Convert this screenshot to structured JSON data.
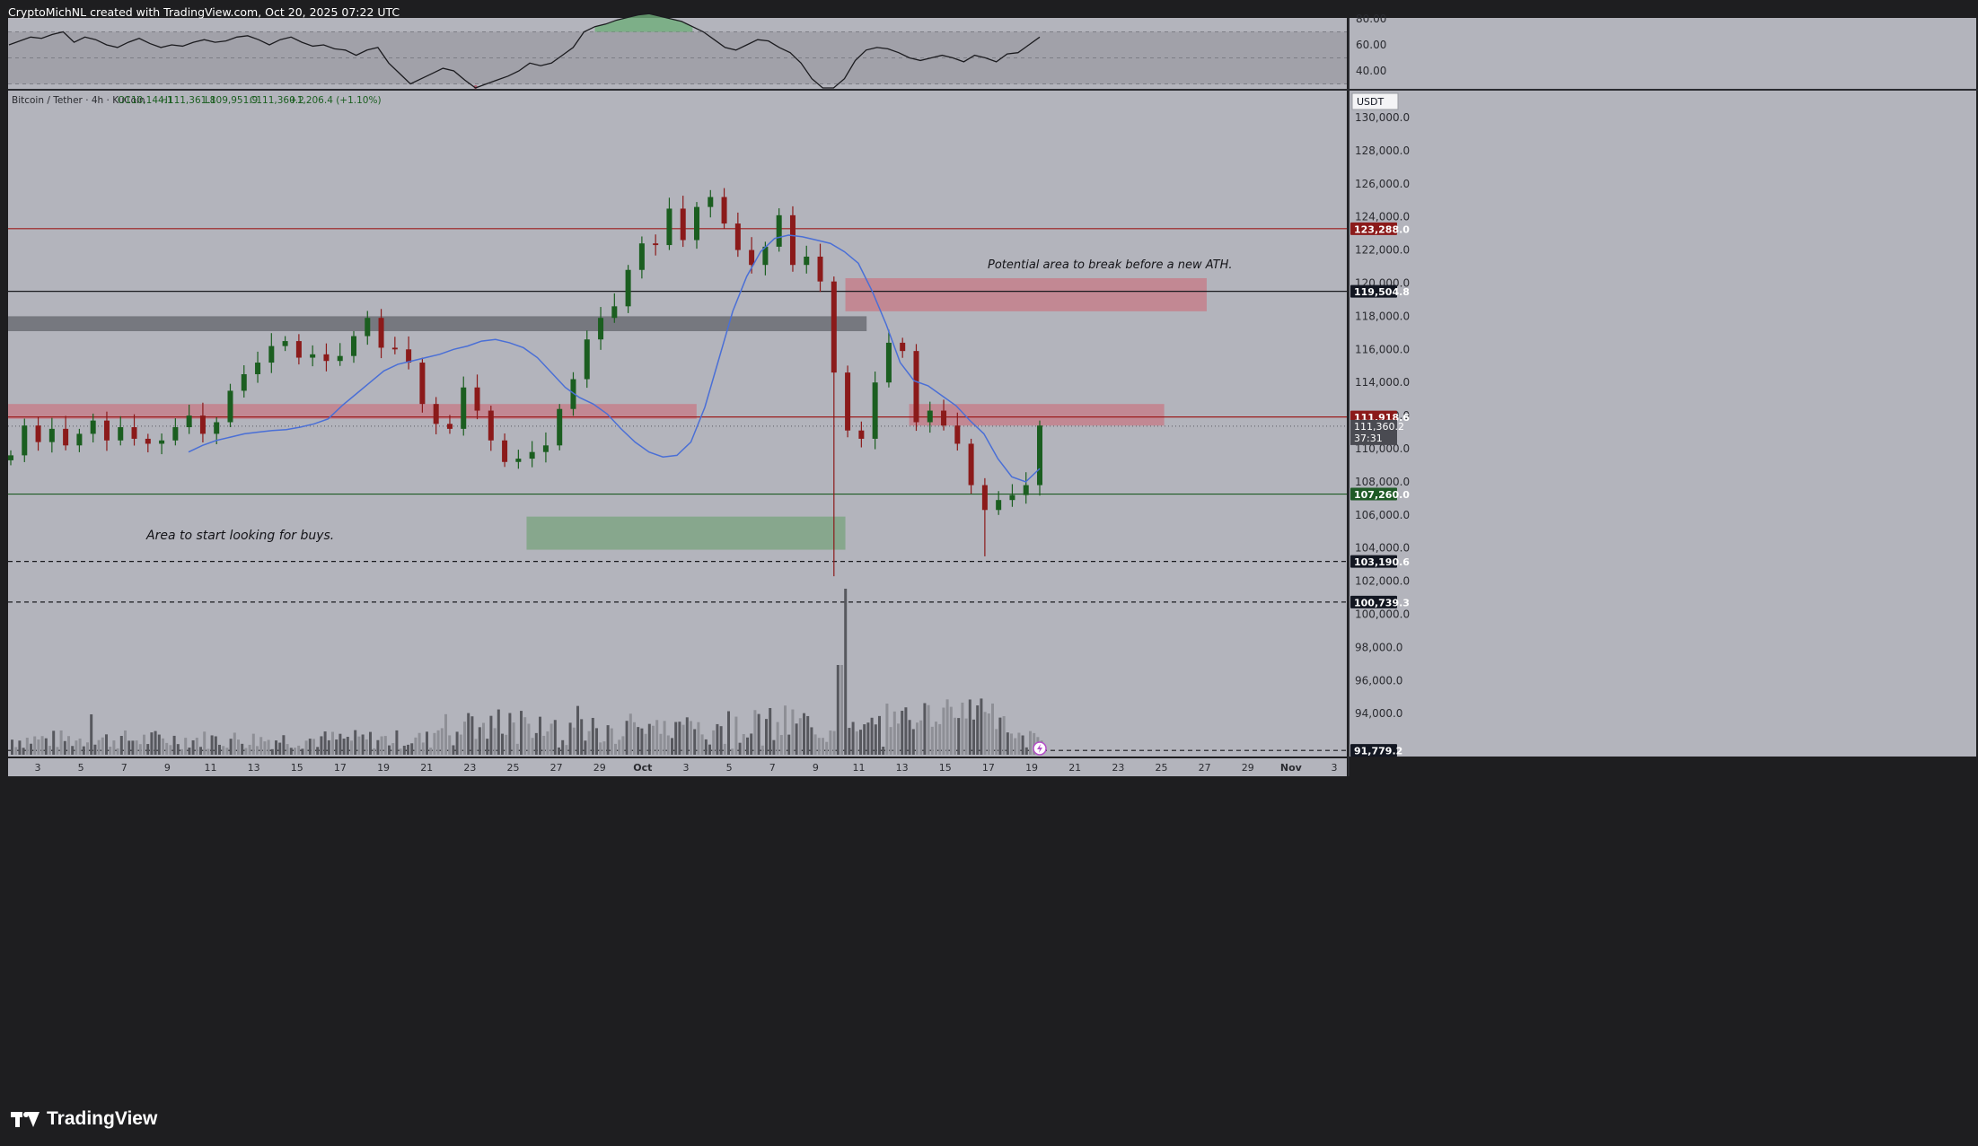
{
  "attribution": "CryptoMichNL created with TradingView.com, Oct 20, 2025 07:22 UTC",
  "brand": "TradingView",
  "colors": {
    "panel_bg": "#b3b4bc",
    "frame_bg": "#1e1e20",
    "up_candle": "#1b5e20",
    "down_candle": "#8b1a1a",
    "ma_line": "#4a6fd6",
    "resistance_zone": "#c77a86",
    "support_zone": "#7fa585",
    "grey_zone": "#6f7178",
    "red_line": "#9c1c1c",
    "green_line": "#1e5b23",
    "label_red": "#8b1a1a",
    "label_green": "#1f5a26",
    "label_dark": "#131722"
  },
  "chart_data": [
    {
      "type": "line",
      "name": "rsi_pane",
      "ylim": [
        27,
        82
      ],
      "tick_labels": [
        "80.00",
        "60.00",
        "40.00"
      ],
      "tick_values": [
        80,
        60,
        40
      ],
      "band": [
        30,
        70
      ],
      "values": [
        60,
        63,
        66,
        65,
        68,
        70,
        62,
        66,
        64,
        60,
        58,
        62,
        65,
        61,
        58,
        60,
        59,
        62,
        64,
        62,
        63,
        66,
        67,
        64,
        60,
        64,
        66,
        62,
        59,
        60,
        57,
        56,
        52,
        56,
        58,
        46,
        38,
        30,
        34,
        38,
        42,
        40,
        33,
        26,
        30,
        33,
        36,
        40,
        46,
        44,
        46,
        52,
        58,
        70,
        74,
        76,
        79,
        81,
        83,
        84,
        82,
        80,
        78,
        74,
        70,
        64,
        58,
        56,
        60,
        64,
        63,
        58,
        54,
        46,
        34,
        24,
        26,
        34,
        48,
        56,
        58,
        57,
        54,
        50,
        48,
        50,
        52,
        50,
        47,
        52,
        50,
        47,
        53,
        54,
        60,
        66
      ]
    },
    {
      "type": "candlestick",
      "name": "main_pane",
      "legend": {
        "pair": "Bitcoin / Tether · 4h · KuCoin",
        "open": "O110,144.1",
        "high": "H111,361.8",
        "low": "L109,951.9",
        "close": "C111,360.2",
        "change": "+1,206.4 (+1.10%)"
      },
      "currency": "USDT",
      "ylim": [
        90500,
        131600
      ],
      "y_ticks": [
        130000,
        128000,
        126000,
        124000,
        122000,
        120000,
        118000,
        116000,
        114000,
        112000,
        110000,
        108000,
        106000,
        104000,
        102000,
        100000,
        98000,
        96000,
        94000
      ],
      "y_tick_labels": [
        "130,000.0",
        "128,000.0",
        "126,000.0",
        "124,000.0",
        "122,000.0",
        "120,000.0",
        "118,000.0",
        "116,000.0",
        "114,000.0",
        "112,000.0",
        "110,000.0",
        "108,000.0",
        "106,000.0",
        "104,000.0",
        "102,000.0",
        "100,000.0",
        "98,000.0",
        "96,000.0",
        "94,000.0"
      ],
      "x_labels": [
        "3",
        "5",
        "7",
        "9",
        "11",
        "13",
        "15",
        "17",
        "19",
        "21",
        "23",
        "25",
        "27",
        "29",
        "Oct",
        "3",
        "5",
        "7",
        "9",
        "11",
        "13",
        "15",
        "17",
        "19",
        "21",
        "23",
        "25",
        "27",
        "29",
        "Nov",
        "3"
      ],
      "x_label_bold": [
        "Oct",
        "Nov"
      ],
      "closes": [
        109600,
        111400,
        110400,
        111200,
        110200,
        110900,
        111700,
        110500,
        111300,
        110600,
        110300,
        110500,
        111300,
        112000,
        110900,
        111600,
        113500,
        114500,
        115200,
        116200,
        116500,
        115500,
        115700,
        115300,
        115600,
        116800,
        117900,
        116100,
        116000,
        115200,
        112700,
        111500,
        111200,
        113700,
        112300,
        110500,
        109200,
        109400,
        109800,
        110200,
        112400,
        114200,
        116600,
        117900,
        118600,
        120800,
        122400,
        122300,
        124500,
        122600,
        124600,
        125200,
        123600,
        122000,
        121100,
        122200,
        124100,
        121100,
        121600,
        120100,
        114600,
        111100,
        110600,
        114000,
        116400,
        115900,
        111600,
        112300,
        111400,
        110300,
        107800,
        106300,
        106900,
        107200,
        107800,
        111400
      ],
      "ma": [
        109800,
        110200,
        110500,
        110700,
        110900,
        111000,
        111100,
        111150,
        111300,
        111500,
        111800,
        112600,
        113300,
        114000,
        114700,
        115100,
        115300,
        115500,
        115700,
        116000,
        116200,
        116500,
        116600,
        116400,
        116100,
        115500,
        114600,
        113700,
        113100,
        112700,
        112100,
        111200,
        110400,
        109800,
        109500,
        109600,
        110400,
        112500,
        115400,
        118300,
        120400,
        121900,
        122700,
        122900,
        122800,
        122600,
        122400,
        121900,
        121200,
        119500,
        117500,
        115200,
        114100,
        113800,
        113200,
        112600,
        111700,
        110900,
        109400,
        108300,
        108000,
        108800
      ],
      "zones": [
        {
          "name": "grey-supply-zone",
          "start": "2025-08-31",
          "end": "2025-10-12",
          "top": 118000,
          "bottom": 117100
        },
        {
          "name": "red-zone-left",
          "start": "2025-08-31",
          "end": "2025-10-04",
          "top": 112700,
          "bottom": 111800
        },
        {
          "name": "red-zone-right",
          "start": "2025-10-14",
          "end": "2025-10-26",
          "top": 112700,
          "bottom": 111400
        },
        {
          "name": "ath-zone",
          "start": "2025-10-11",
          "end": "2025-10-28",
          "top": 120300,
          "bottom": 118300
        },
        {
          "name": "buy-zone",
          "start": "2025-09-26",
          "end": "2025-10-11",
          "top": 105900,
          "bottom": 103900
        }
      ],
      "lines": [
        {
          "name": "resistance-line-123288",
          "price": 123288.0,
          "label": "123,288.0",
          "style": "solid",
          "label_bg": "#8b1a1a"
        },
        {
          "name": "line-119504",
          "price": 119504.8,
          "label": "119,504.8",
          "style": "solid",
          "label_bg": "#131722"
        },
        {
          "name": "line-111918",
          "price": 111918.6,
          "label": "111,918.6",
          "style": "solid",
          "label_bg": "#8b1a1a"
        },
        {
          "name": "support-line-107260",
          "price": 107260.0,
          "label": "107,260.0",
          "style": "solid",
          "label_bg": "#1f5a26"
        },
        {
          "name": "dashed-line-103190",
          "price": 103190.6,
          "label": "103,190.6",
          "style": "dashed",
          "label_bg": "#131722"
        },
        {
          "name": "dashed-line-100739",
          "price": 100739.3,
          "label": "100,739.3",
          "style": "dashed",
          "label_bg": "#131722"
        },
        {
          "name": "dashed-line-91779",
          "price": 91779.2,
          "label": "91,779.2",
          "style": "dashed",
          "label_bg": "#131722"
        }
      ],
      "current_price": {
        "label": "111,360.2",
        "countdown": "37:31",
        "price": 111360.2
      },
      "annotations": [
        {
          "name": "ath-annotation",
          "text": "Potential area to break before a new ATH."
        },
        {
          "name": "buy-annotation",
          "text": "Area to start looking for buys."
        }
      ]
    }
  ]
}
